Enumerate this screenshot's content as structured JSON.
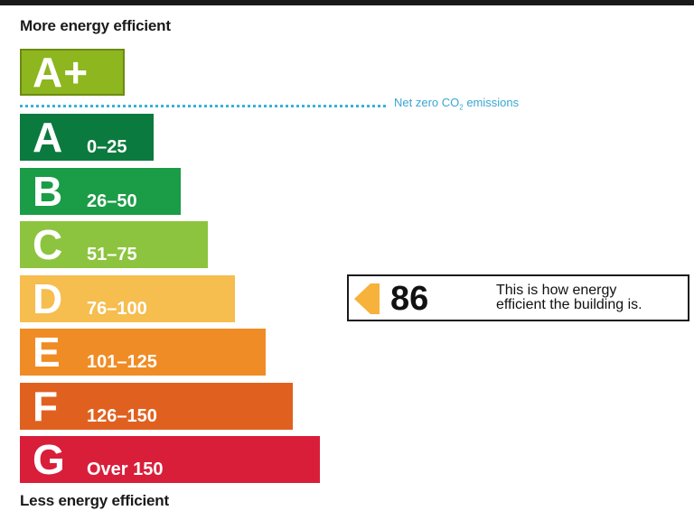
{
  "headings": {
    "top": "More energy efficient",
    "bottom": "Less energy efficient"
  },
  "net_zero": {
    "label_prefix": "Net zero CO",
    "label_sub": "2",
    "label_suffix": " emissions"
  },
  "rating": {
    "value": "86",
    "caption_line1": "This is how energy",
    "caption_line2": "efficient the building is.",
    "arrow_color": "#f6b23a"
  },
  "chart_data": {
    "type": "bar",
    "orientation": "horizontal",
    "categories": [
      "A+",
      "A",
      "B",
      "C",
      "D",
      "E",
      "F",
      "G"
    ],
    "range_labels": [
      "",
      "0–25",
      "26–50",
      "51–75",
      "76–100",
      "101–125",
      "126–150",
      "Over 150"
    ],
    "colors": [
      "#8db61f",
      "#0b7a3e",
      "#1b9c47",
      "#8dc43f",
      "#f6bd4f",
      "#f08c25",
      "#e0611f",
      "#d91e3a"
    ],
    "band_lengths": [
      1,
      2,
      3,
      4,
      5,
      6,
      7,
      8
    ],
    "current_rating": 86,
    "current_band": "D"
  }
}
